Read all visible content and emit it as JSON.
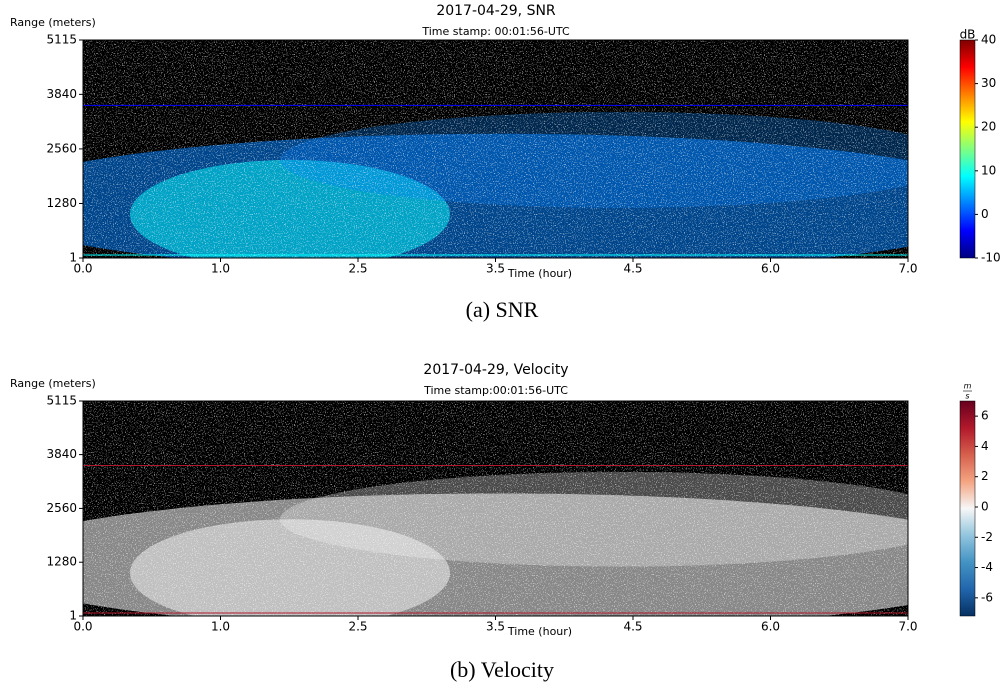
{
  "chart_data": [
    {
      "type": "heatmap",
      "title": "2017-04-29, SNR",
      "subtitle": "Time stamp: 00:01:56-UTC",
      "y_label": "Range (meters)",
      "x_label": "Time (hour)",
      "x_tick_labels": [
        "0.0",
        "1.0",
        "2.5",
        "3.5",
        "4.5",
        "6.0",
        "7.0"
      ],
      "ylim": [
        1,
        5115
      ],
      "yticks": [
        1,
        1280,
        2560,
        3840,
        5115
      ],
      "colorbar": {
        "label": "dB",
        "lim": [
          -10,
          40
        ],
        "ticks": [
          -10,
          0,
          10,
          20,
          30,
          40
        ],
        "colors": [
          "#00007f",
          "#0000ff",
          "#0080ff",
          "#00ffff",
          "#80ff80",
          "#ffff00",
          "#ff8000",
          "#ff0000",
          "#7f0000"
        ]
      },
      "caption": "(a) SNR"
    },
    {
      "type": "heatmap",
      "title": "2017-04-29, Velocity",
      "subtitle": "Time stamp:00:01:56-UTC",
      "y_label": "Range (meters)",
      "x_label": "Time (hour)",
      "x_tick_labels": [
        "0.0",
        "1.0",
        "2.5",
        "3.5",
        "4.5",
        "6.0",
        "7.0"
      ],
      "ylim": [
        1,
        5115
      ],
      "yticks": [
        1,
        1280,
        2560,
        3840,
        5115
      ],
      "colorbar": {
        "label_numerator": "m",
        "label_denominator": "s",
        "lim": [
          -7.2,
          7
        ],
        "ticks": [
          -6,
          -4,
          -2,
          0,
          2,
          4,
          6
        ],
        "colors": [
          "#053061",
          "#2166ac",
          "#4393c3",
          "#92c5de",
          "#f7f7f7",
          "#f4a582",
          "#d6604d",
          "#b2182b",
          "#67001f"
        ]
      },
      "caption": "(b) Velocity"
    }
  ]
}
